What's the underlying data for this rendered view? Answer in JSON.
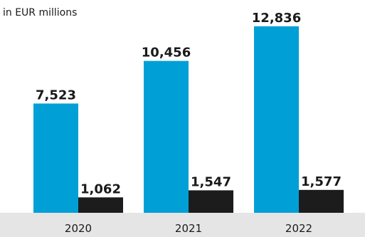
{
  "chart_data": {
    "type": "bar",
    "unit_label": "in EUR millions",
    "categories": [
      "2020",
      "2021",
      "2022"
    ],
    "series": [
      {
        "values": [
          7523,
          10456,
          12836
        ],
        "color": "#00a0d6"
      },
      {
        "values": [
          1062,
          1547,
          1577
        ],
        "color": "#1c1c1c"
      }
    ],
    "data_labels": [
      [
        "7,523",
        "10,456",
        "12,836"
      ],
      [
        "1,062",
        "1,547",
        "1,577"
      ]
    ],
    "ylim": [
      0,
      12836
    ],
    "grid": false,
    "axis_band_color": "#e5e5e5"
  }
}
